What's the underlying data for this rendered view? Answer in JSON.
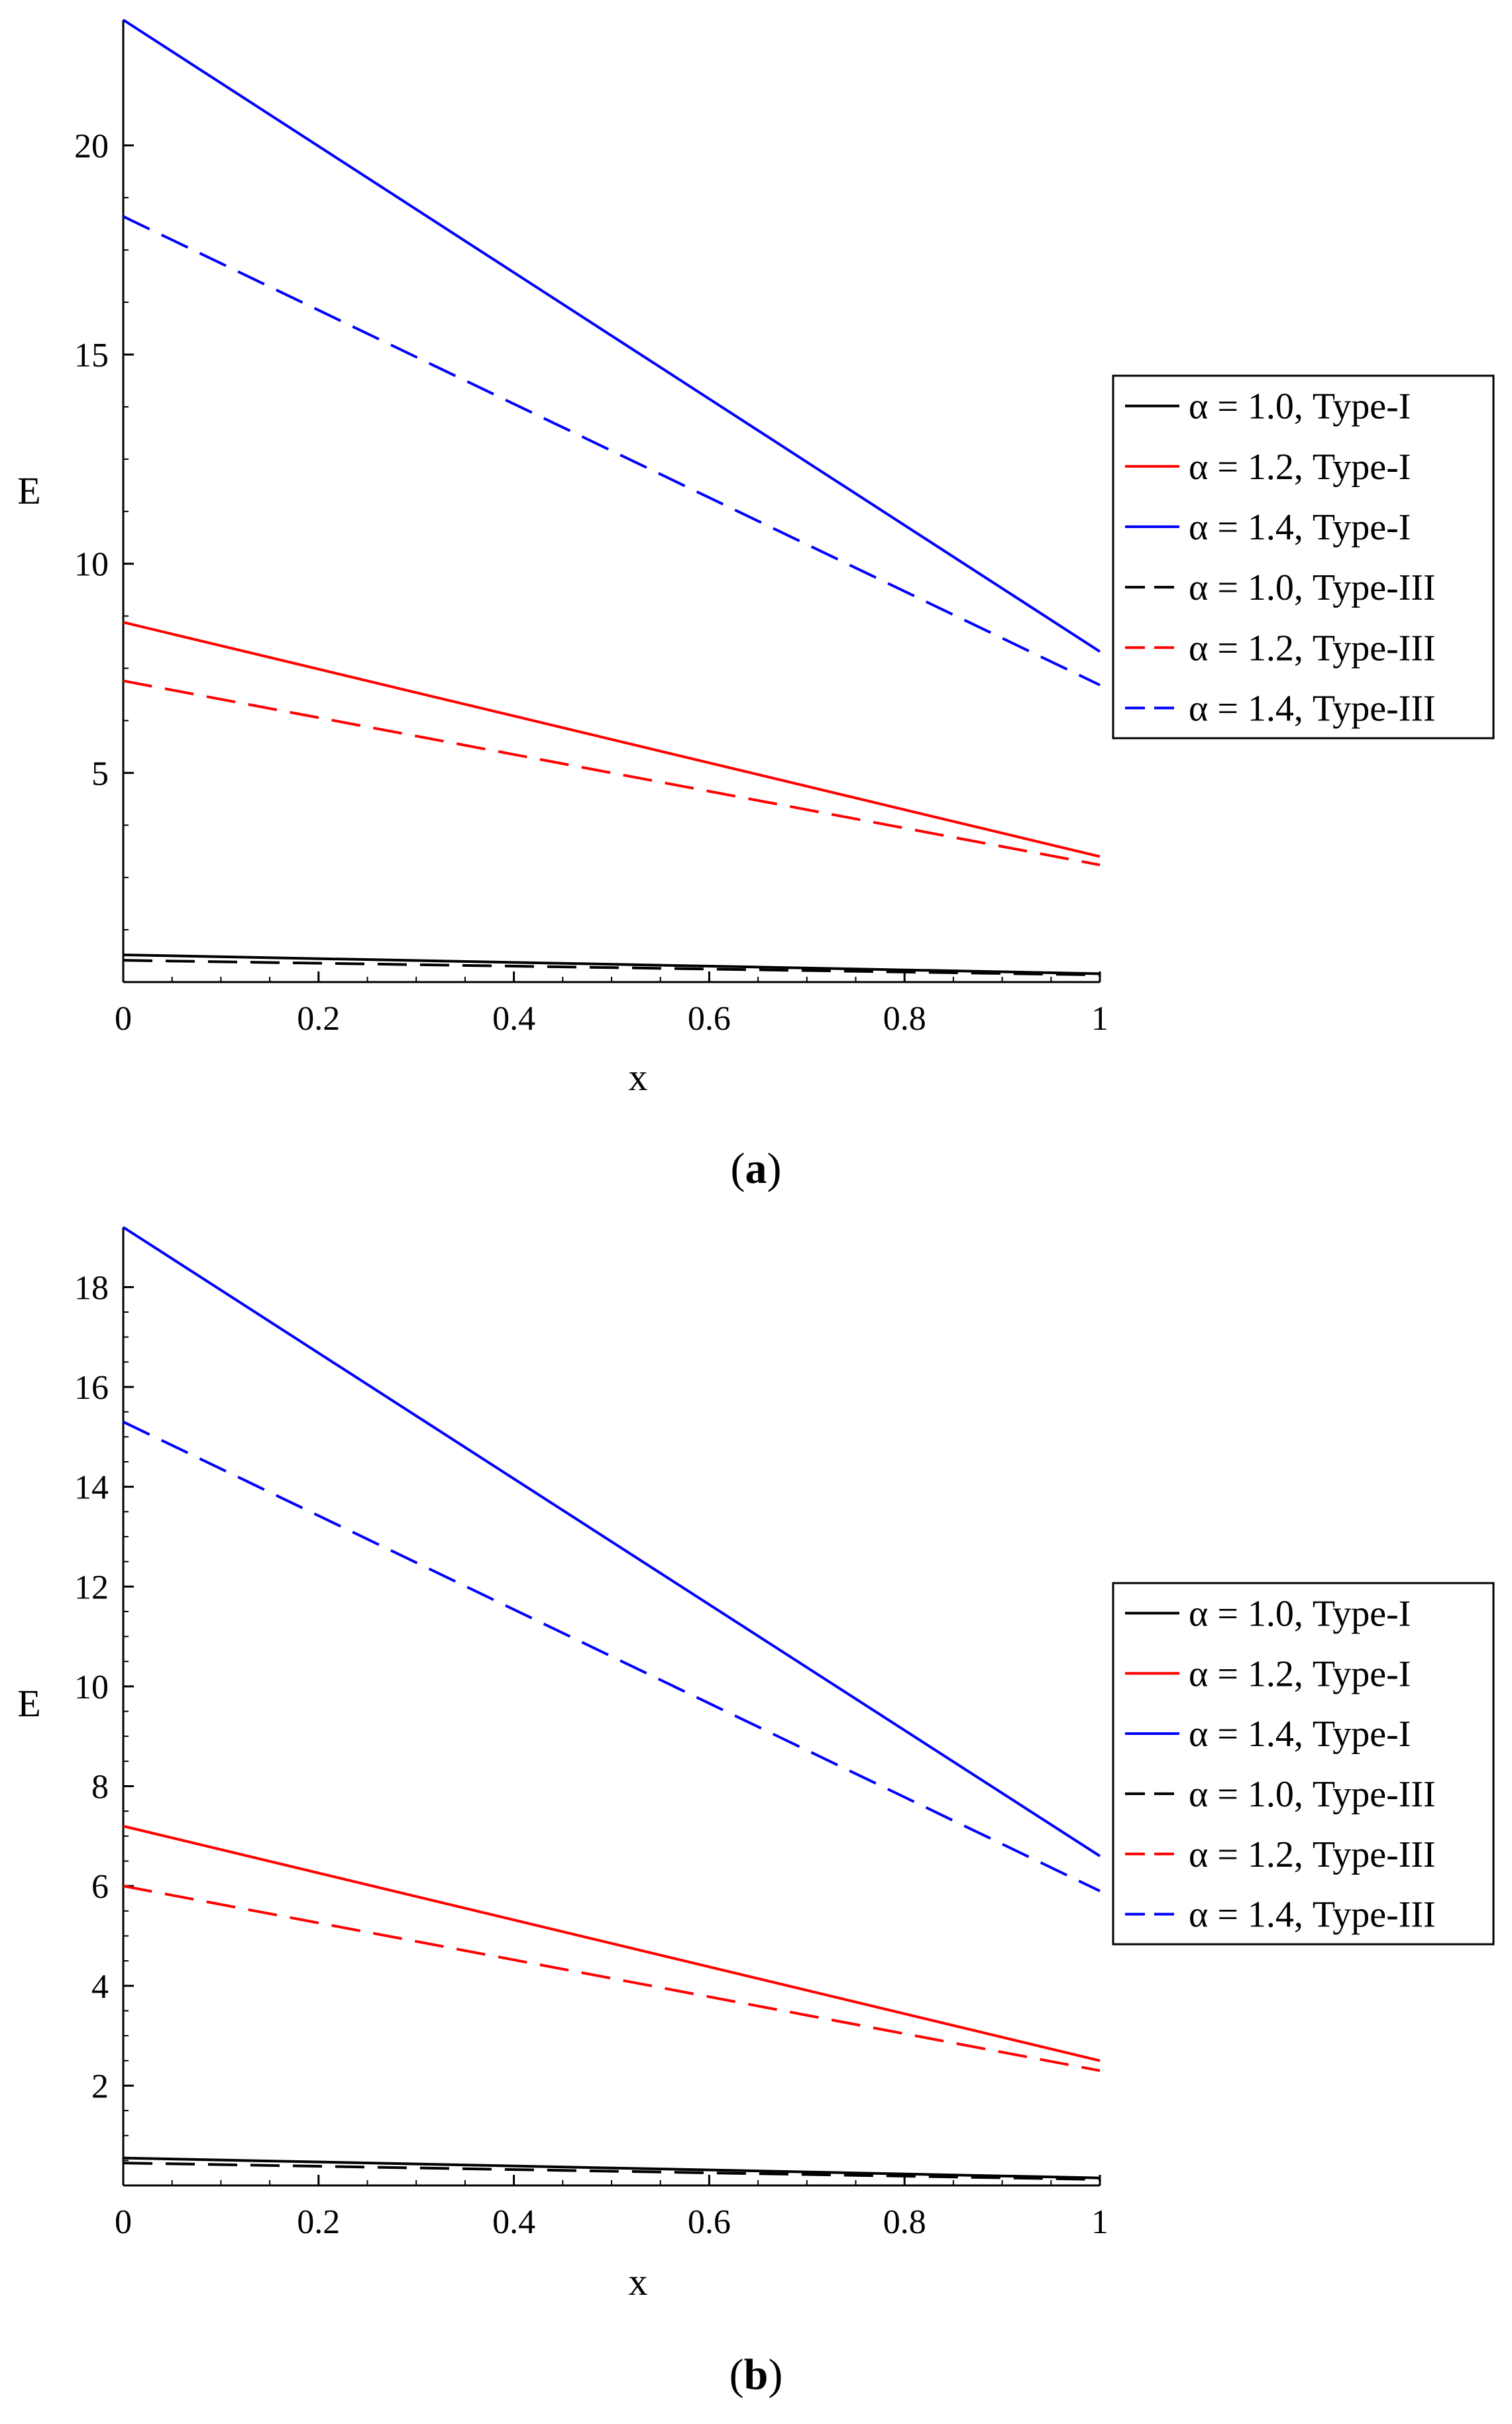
{
  "chart_data": [
    {
      "panel": "a",
      "caption_letter": "a",
      "type": "line",
      "xlabel": "x",
      "ylabel": "E",
      "xlim": [
        0,
        1
      ],
      "ylim": [
        0,
        23.0
      ],
      "xticks": [
        0,
        0.2,
        0.4,
        0.6,
        0.8,
        1
      ],
      "xtick_labels": [
        "0",
        "0.2",
        "0.4",
        "0.6",
        "0.8",
        "1"
      ],
      "yticks": [
        5,
        10,
        15,
        20
      ],
      "ytick_labels": [
        "5",
        "10",
        "15",
        "20"
      ],
      "legend_position": "right",
      "series": [
        {
          "name": "α = 1.0, Type-I",
          "color": "#000000",
          "dash": "solid",
          "x": [
            0,
            1
          ],
          "y": [
            0.65,
            0.2
          ]
        },
        {
          "name": "α = 1.2, Type-I",
          "color": "#ff0000",
          "dash": "solid",
          "x": [
            0,
            1
          ],
          "y": [
            8.6,
            3.0
          ]
        },
        {
          "name": "α = 1.4, Type-I",
          "color": "#0000ff",
          "dash": "solid",
          "x": [
            0,
            1
          ],
          "y": [
            23.0,
            7.9
          ]
        },
        {
          "name": "α = 1.0, Type-III",
          "color": "#000000",
          "dash": "dashed",
          "x": [
            0,
            1
          ],
          "y": [
            0.52,
            0.17
          ]
        },
        {
          "name": "α = 1.2, Type-III",
          "color": "#ff0000",
          "dash": "dashed",
          "x": [
            0,
            1
          ],
          "y": [
            7.2,
            2.8
          ]
        },
        {
          "name": "α = 1.4, Type-III",
          "color": "#0000ff",
          "dash": "dashed",
          "x": [
            0,
            1
          ],
          "y": [
            18.3,
            7.1
          ]
        }
      ]
    },
    {
      "panel": "b",
      "caption_letter": "b",
      "type": "line",
      "xlabel": "x",
      "ylabel": "E",
      "xlim": [
        0,
        1
      ],
      "ylim": [
        0,
        19.2
      ],
      "xticks": [
        0,
        0.2,
        0.4,
        0.6,
        0.8,
        1
      ],
      "xtick_labels": [
        "0",
        "0.2",
        "0.4",
        "0.6",
        "0.8",
        "1"
      ],
      "yticks": [
        2,
        4,
        6,
        8,
        10,
        12,
        14,
        16,
        18
      ],
      "ytick_labels": [
        "2",
        "4",
        "6",
        "8",
        "10",
        "12",
        "14",
        "16",
        "18"
      ],
      "legend_position": "right",
      "series": [
        {
          "name": "α = 1.0, Type-I",
          "color": "#000000",
          "dash": "solid",
          "x": [
            0,
            1
          ],
          "y": [
            0.55,
            0.15
          ]
        },
        {
          "name": "α = 1.2, Type-I",
          "color": "#ff0000",
          "dash": "solid",
          "x": [
            0,
            1
          ],
          "y": [
            7.2,
            2.5
          ]
        },
        {
          "name": "α = 1.4, Type-I",
          "color": "#0000ff",
          "dash": "solid",
          "x": [
            0,
            1
          ],
          "y": [
            19.2,
            6.6
          ]
        },
        {
          "name": "α = 1.0, Type-III",
          "color": "#000000",
          "dash": "dashed",
          "x": [
            0,
            1
          ],
          "y": [
            0.45,
            0.12
          ]
        },
        {
          "name": "α = 1.2, Type-III",
          "color": "#ff0000",
          "dash": "dashed",
          "x": [
            0,
            1
          ],
          "y": [
            6.0,
            2.3
          ]
        },
        {
          "name": "α = 1.4, Type-III",
          "color": "#0000ff",
          "dash": "dashed",
          "x": [
            0,
            1
          ],
          "y": [
            15.3,
            5.9
          ]
        }
      ]
    }
  ]
}
